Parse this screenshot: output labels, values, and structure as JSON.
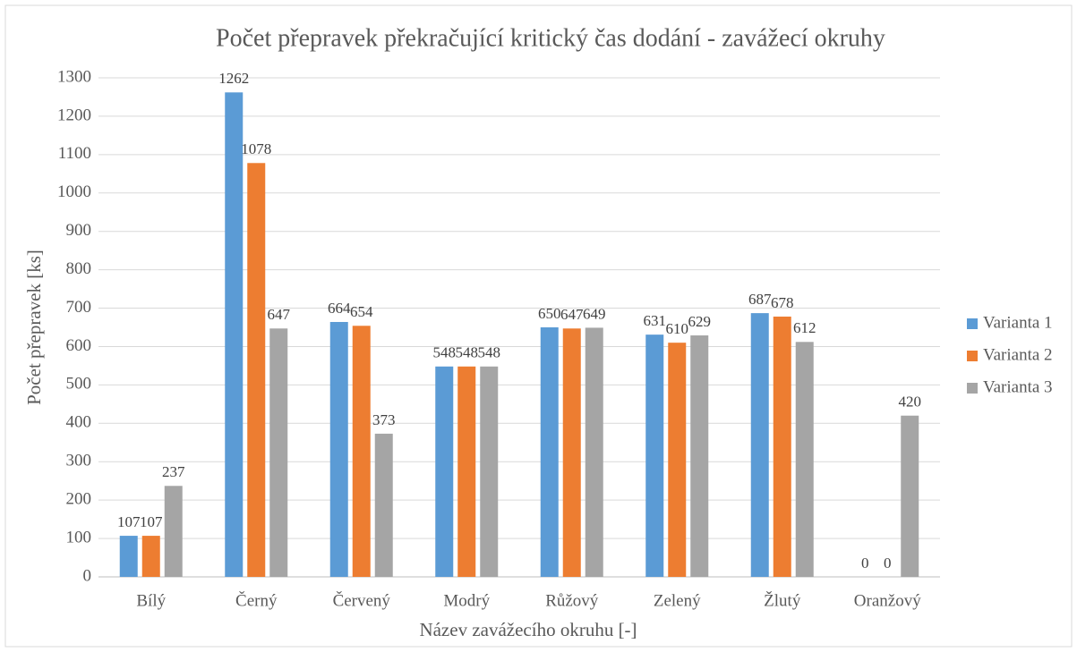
{
  "chart_data": {
    "type": "bar",
    "title": "Počet přepravek překračující kritický čas dodání - zavážecí okruhy",
    "x_label": "Název zavážecího okruhu [-]",
    "y_label": "Počet přepravek [ks]",
    "categories": [
      "Bílý",
      "Černý",
      "Červený",
      "Modrý",
      "Růžový",
      "Zelený",
      "Žlutý",
      "Oranžový"
    ],
    "series": [
      {
        "name": "Varianta 1",
        "color": "#5b9bd5",
        "values": [
          107,
          1262,
          664,
          548,
          650,
          631,
          687,
          0
        ]
      },
      {
        "name": "Varianta 2",
        "color": "#ed7d31",
        "values": [
          107,
          1078,
          654,
          548,
          647,
          610,
          678,
          0
        ]
      },
      {
        "name": "Varianta 3",
        "color": "#a5a5a5",
        "values": [
          237,
          647,
          373,
          548,
          649,
          629,
          612,
          420
        ]
      }
    ],
    "ylim": [
      0,
      1300
    ],
    "yticks": [
      0,
      100,
      200,
      300,
      400,
      500,
      600,
      700,
      800,
      900,
      1000,
      1100,
      1200,
      1300
    ],
    "grid": true,
    "legend": "right"
  }
}
